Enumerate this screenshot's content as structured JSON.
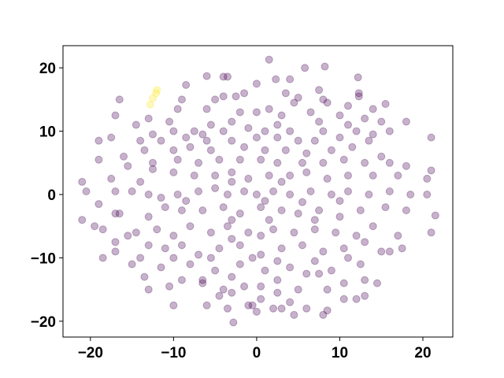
{
  "chart_data": {
    "type": "scatter",
    "xlim": [
      -23.3,
      23.6
    ],
    "ylim": [
      -22.5,
      23.5
    ],
    "xticks": [
      {
        "value": -20,
        "label": "−20"
      },
      {
        "value": -10,
        "label": "−10"
      },
      0,
      10,
      20
    ],
    "yticks": [
      {
        "value": -20,
        "label": "−20"
      },
      {
        "value": -10,
        "label": "−10"
      },
      0,
      10,
      20
    ],
    "series": [
      {
        "color": "#440154",
        "x": [
          1.5,
          8.2,
          5.8,
          -6,
          -4,
          -3.5,
          0,
          2.3,
          12.2,
          -8.5,
          4,
          -2.5,
          -4,
          -1.5,
          3.5,
          5,
          7.5,
          12.3,
          12.3,
          8,
          8.5,
          11,
          14,
          15.5,
          -16.5,
          -9,
          -5,
          4.5,
          1.5,
          -17,
          -13,
          -9.5,
          -6,
          -2,
          0,
          3,
          6.5,
          10,
          13,
          18,
          -10.5,
          -5.5,
          -3,
          2.5,
          7.5,
          11,
          15,
          -14.5,
          -12.5,
          -10,
          -7.5,
          -4,
          -1,
          1,
          4,
          8,
          12,
          16,
          -19,
          -17.5,
          -14,
          -11.5,
          -8.5,
          -6,
          -3,
          0,
          2.5,
          5,
          7,
          10,
          13.5,
          21,
          -6.5,
          14,
          -19,
          -16,
          -13.5,
          -10,
          -8,
          -5.5,
          -1.5,
          1,
          3.5,
          6,
          9,
          11.5,
          15,
          -15.5,
          -12.5,
          -9.5,
          -7,
          -4.5,
          -2,
          0.5,
          2.5,
          5.5,
          8,
          10.5,
          13,
          16,
          18,
          -17.5,
          -14,
          -12.5,
          -10,
          -7.5,
          -5,
          -3,
          -1,
          1.5,
          4,
          6,
          8.5,
          11,
          14,
          17,
          20.5,
          21,
          -21,
          -3,
          3,
          -20.5,
          -17,
          -15,
          -13,
          -11.5,
          -9.5,
          -7,
          -5,
          -3.5,
          -1.5,
          0,
          2,
          4,
          6.5,
          9,
          11,
          13.5,
          16,
          18.5,
          20.5,
          -8.5,
          1,
          5.5,
          10,
          -19,
          -16.5,
          -13,
          -11,
          -9,
          -6.5,
          -4,
          -2,
          0.5,
          3,
          5,
          7.5,
          10,
          12.5,
          15.5,
          18,
          -17,
          -21,
          7,
          -3,
          1.5,
          -19.5,
          -18.5,
          -14.5,
          -12,
          -10,
          -8,
          -5.5,
          -3.5,
          -1,
          2,
          4.5,
          7,
          9.5,
          12,
          14,
          17,
          21,
          21.5,
          -15.5,
          -3,
          0.5,
          -17,
          -13,
          -11,
          -9,
          -7,
          -4.5,
          -2,
          0.5,
          3,
          5.5,
          8,
          10.5,
          13,
          15,
          17.5,
          -18.5,
          -17,
          -14,
          -10,
          -5.5,
          -0.5,
          2.5,
          7,
          11,
          16,
          -15,
          -11.5,
          -8,
          -5,
          -2,
          1,
          4,
          6,
          9,
          12.5,
          -13.5,
          -9,
          -6.5,
          -3,
          2.5,
          7.5,
          13,
          14.5,
          -10.5,
          -6.5,
          -4,
          -1.5,
          0.5,
          2.5,
          5,
          8.5,
          10.5,
          12,
          -13,
          -4.5,
          -3,
          0.5,
          4,
          10.5,
          13,
          -10,
          -6,
          -3.5,
          -1,
          0,
          2,
          3,
          6,
          8,
          8.5,
          4.5,
          -2.8,
          -0.5
        ],
        "y": [
          21.3,
          20.2,
          20,
          18.7,
          18.6,
          18.6,
          17.5,
          18.2,
          18.5,
          17.3,
          18.2,
          15.5,
          15.5,
          16,
          16,
          15.3,
          16.5,
          16,
          15.5,
          15,
          14.5,
          14,
          13.5,
          14.3,
          15,
          15,
          15,
          14.5,
          13.5,
          12.5,
          12,
          13.5,
          13.5,
          13,
          13,
          12.5,
          13,
          12.5,
          12,
          11.5,
          11.5,
          11,
          11.5,
          11,
          11.5,
          11,
          11.5,
          11,
          9.5,
          10,
          10,
          10,
          10.5,
          10,
          10,
          10,
          10,
          10,
          8.5,
          9,
          8.5,
          8.5,
          9,
          8.5,
          8.5,
          9,
          9,
          8.5,
          8.5,
          9,
          8.5,
          9,
          9.5,
          9.5,
          5.5,
          6,
          7,
          7,
          7.5,
          7,
          7.5,
          7,
          7,
          6.5,
          7,
          7.5,
          6,
          4.5,
          5,
          5.5,
          5,
          5.5,
          5.5,
          5.5,
          5,
          5,
          5,
          5.5,
          5,
          5,
          4.5,
          2.5,
          2,
          4,
          3.5,
          3,
          3,
          3.5,
          2.5,
          3,
          3,
          3.5,
          2.5,
          3,
          3,
          3,
          2.5,
          3.8,
          2,
          2,
          2,
          0.5,
          0.5,
          0.5,
          0,
          -0.5,
          0,
          0.5,
          1,
          0,
          0.5,
          0,
          0.5,
          0,
          0.5,
          0,
          0.5,
          0,
          0.5,
          0,
          0,
          -1,
          -1,
          -1.2,
          -1,
          -1.5,
          -3,
          -3.5,
          -2,
          -2.5,
          -2.5,
          -2,
          -3,
          -2,
          -2.5,
          -3,
          -2.5,
          -3.5,
          -2.5,
          -2,
          -2.5,
          -3,
          -4,
          -4,
          -4,
          -4,
          -5,
          -5.5,
          -6,
          -5.5,
          -6.5,
          -5,
          -6,
          -5,
          -6,
          -5.5,
          -6,
          -5.5,
          -6,
          -6.5,
          -5,
          -6.5,
          -6,
          -3.3,
          -6.5,
          -7,
          -6.5,
          -7.5,
          -8,
          -8.5,
          -8,
          -9.5,
          -8.5,
          -8,
          -9.5,
          -8.5,
          -8,
          -9,
          -8.5,
          -7.5,
          -9,
          -8.5,
          -10,
          -9,
          -10,
          -10,
          -10,
          -10,
          -10.5,
          -10.5,
          -10,
          -9,
          -11,
          -11.5,
          -11,
          -12,
          -11,
          -12,
          -11.5,
          -12.5,
          -12,
          -11,
          -13,
          -13.5,
          -13.5,
          -13,
          -13.5,
          -12.5,
          -13.5,
          -14,
          -14.5,
          -14,
          -15,
          -14.5,
          -14.5,
          -15.5,
          -15,
          -15,
          -14,
          -16.5,
          -15,
          -16,
          -15.5,
          -16.5,
          -17,
          -16.5,
          -16,
          -17.5,
          -17.5,
          -18,
          -17.5,
          -18.5,
          -18,
          -18,
          -18,
          -19,
          -18.3,
          -19,
          -20.2,
          -17.5
        ]
      },
      {
        "color": "#fde725",
        "x": [
          -12,
          -12.1,
          -12.5,
          -12.8
        ],
        "y": [
          16.5,
          16,
          15.2,
          14.2
        ]
      }
    ]
  }
}
